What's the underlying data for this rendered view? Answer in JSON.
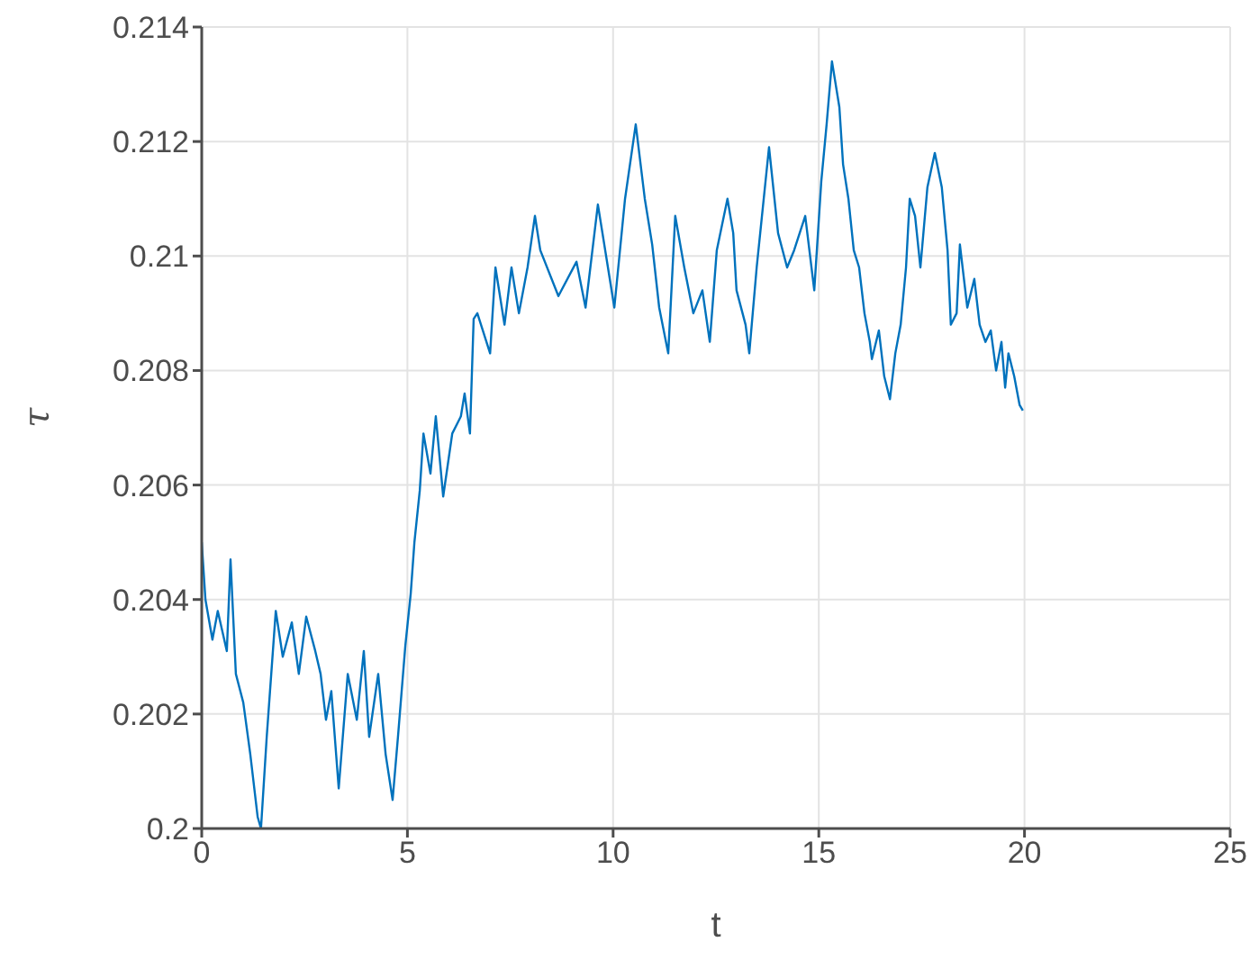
{
  "chart_data": {
    "type": "line",
    "xlabel": "t",
    "ylabel": "τ",
    "xlim": [
      0,
      25
    ],
    "xticks": [
      0,
      5,
      10,
      15,
      20,
      25
    ],
    "ylim": [
      0.2,
      0.214
    ],
    "yticks": [
      0.2,
      0.202,
      0.204,
      0.206,
      0.208,
      0.21,
      0.212,
      0.214
    ],
    "grid": true,
    "legend": false,
    "marker": "none",
    "line_style": "solid",
    "series": [
      {
        "color": "#0072bd",
        "x": [
          0,
          0.09,
          0.26,
          0.39,
          0.61,
          0.7,
          0.83,
          1.01,
          1.18,
          1.36,
          1.44,
          1.58,
          1.66,
          1.8,
          1.97,
          2.19,
          2.36,
          2.54,
          2.76,
          2.89,
          3.02,
          3.15,
          3.33,
          3.55,
          3.77,
          3.94,
          4.07,
          4.29,
          4.47,
          4.64,
          4.77,
          4.95,
          5.08,
          5.17,
          5.3,
          5.39,
          5.56,
          5.69,
          5.87,
          6.09,
          6.3,
          6.39,
          6.52,
          6.61,
          6.7,
          7.01,
          7.14,
          7.36,
          7.53,
          7.71,
          7.92,
          8.1,
          8.23,
          8.67,
          9.11,
          9.33,
          9.63,
          10.03,
          10.29,
          10.55,
          10.77,
          10.95,
          11.12,
          11.34,
          11.51,
          11.73,
          11.95,
          12.17,
          12.35,
          12.52,
          12.78,
          12.92,
          13.0,
          13.22,
          13.31,
          13.49,
          13.79,
          14.01,
          14.23,
          14.4,
          14.67,
          14.89,
          15.06,
          15.19,
          15.32,
          15.5,
          15.59,
          15.72,
          15.85,
          15.98,
          16.11,
          16.24,
          16.29,
          16.46,
          16.59,
          16.73,
          16.86,
          16.99,
          17.12,
          17.21,
          17.34,
          17.47,
          17.64,
          17.82,
          17.99,
          18.13,
          18.21,
          18.35,
          18.43,
          18.61,
          18.78,
          18.91,
          19.05,
          19.18,
          19.31,
          19.44,
          19.53,
          19.61,
          19.75,
          19.88,
          19.96
        ],
        "values": [
          0.205,
          0.204,
          0.2033,
          0.2038,
          0.2031,
          0.2047,
          0.2027,
          0.2022,
          0.2013,
          0.2002,
          0.2,
          0.2016,
          0.2024,
          0.2038,
          0.203,
          0.2036,
          0.2027,
          0.2037,
          0.2031,
          0.2027,
          0.2019,
          0.2024,
          0.2007,
          0.2027,
          0.2019,
          0.2031,
          0.2016,
          0.2027,
          0.2013,
          0.2005,
          0.2016,
          0.2032,
          0.2041,
          0.205,
          0.2059,
          0.2069,
          0.2062,
          0.2072,
          0.2058,
          0.2069,
          0.2072,
          0.2076,
          0.2069,
          0.2089,
          0.209,
          0.2083,
          0.2098,
          0.2088,
          0.2098,
          0.209,
          0.2098,
          0.2107,
          0.2101,
          0.2093,
          0.2099,
          0.2091,
          0.2109,
          0.2091,
          0.211,
          0.2123,
          0.211,
          0.2102,
          0.2091,
          0.2083,
          0.2107,
          0.2098,
          0.209,
          0.2094,
          0.2085,
          0.2101,
          0.211,
          0.2104,
          0.2094,
          0.2088,
          0.2083,
          0.2098,
          0.2119,
          0.2104,
          0.2098,
          0.2101,
          0.2107,
          0.2094,
          0.2113,
          0.2123,
          0.2134,
          0.2126,
          0.2116,
          0.211,
          0.2101,
          0.2098,
          0.209,
          0.2085,
          0.2082,
          0.2087,
          0.2079,
          0.2075,
          0.2083,
          0.2088,
          0.2098,
          0.211,
          0.2107,
          0.2098,
          0.2112,
          0.2118,
          0.2112,
          0.2101,
          0.2088,
          0.209,
          0.2102,
          0.2091,
          0.2096,
          0.2088,
          0.2085,
          0.2087,
          0.208,
          0.2085,
          0.2077,
          0.2083,
          0.2079,
          0.2074,
          0.2073
        ]
      }
    ]
  }
}
